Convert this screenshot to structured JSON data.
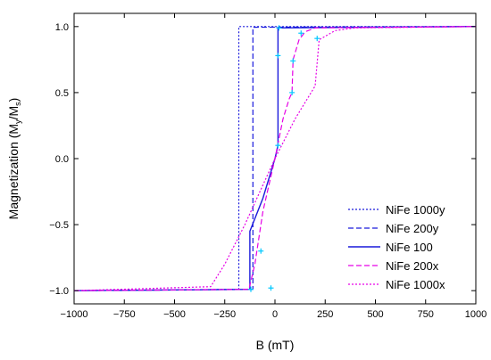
{
  "chart_data": {
    "type": "line",
    "xlabel": "B (mT)",
    "ylabel_main": "Magnetization (M",
    "ylabel_sub1": "y",
    "ylabel_mid": "/M",
    "ylabel_sub2": "s",
    "ylabel_end": ")",
    "xlim": [
      -1000,
      1000
    ],
    "ylim": [
      -1.1,
      1.1
    ],
    "xticks": [
      -1000,
      -750,
      -500,
      -250,
      0,
      250,
      500,
      750,
      1000
    ],
    "xtick_labels": [
      "−1000",
      "−750",
      "−500",
      "−250",
      "0",
      "250",
      "500",
      "750",
      "1000"
    ],
    "yticks": [
      -1.0,
      -0.5,
      0.0,
      0.5,
      1.0
    ],
    "ytick_labels": [
      "−1.0",
      "−0.5",
      "0.0",
      "0.5",
      "1.0"
    ],
    "legend_position": "bottom-right",
    "colors": {
      "blue": "#1a1adc",
      "magenta": "#e600e6",
      "marker": "#00c8ff"
    },
    "series": [
      {
        "name": "NiFe 1000y",
        "style": "dotted",
        "color": "#1a1adc",
        "points": [
          [
            -1000,
            -1.0
          ],
          [
            -180,
            -0.99
          ],
          [
            -180,
            1.0
          ],
          [
            1000,
            1.0
          ]
        ]
      },
      {
        "name": "NiFe 200y",
        "style": "dashed",
        "color": "#1a1adc",
        "points": [
          [
            -1000,
            -1.0
          ],
          [
            -110,
            -0.99
          ],
          [
            -110,
            0.995
          ],
          [
            1000,
            1.0
          ]
        ]
      },
      {
        "name": "NiFe 100",
        "style": "solid",
        "color": "#1a1adc",
        "points": [
          [
            -1000,
            -1.0
          ],
          [
            -125,
            -0.99
          ],
          [
            -125,
            -0.55
          ],
          [
            -60,
            -0.3
          ],
          [
            0,
            0.0
          ],
          [
            15,
            0.1
          ],
          [
            15,
            0.99
          ],
          [
            1000,
            1.0
          ]
        ]
      },
      {
        "name": "NiFe 200x",
        "style": "dashed",
        "color": "#e600e6",
        "points": [
          [
            -1000,
            -1.0
          ],
          [
            -130,
            -0.99
          ],
          [
            -100,
            -0.8
          ],
          [
            -60,
            -0.4
          ],
          [
            0,
            0.0
          ],
          [
            40,
            0.3
          ],
          [
            70,
            0.45
          ],
          [
            85,
            0.5
          ],
          [
            90,
            0.75
          ],
          [
            120,
            0.9
          ],
          [
            150,
            0.96
          ],
          [
            200,
            0.99
          ],
          [
            1000,
            1.0
          ]
        ]
      },
      {
        "name": "NiFe 1000x",
        "style": "dotted",
        "color": "#e600e6",
        "points": [
          [
            -1000,
            -1.0
          ],
          [
            -320,
            -0.97
          ],
          [
            -250,
            -0.8
          ],
          [
            -150,
            -0.5
          ],
          [
            0,
            0.0
          ],
          [
            100,
            0.3
          ],
          [
            200,
            0.55
          ],
          [
            220,
            0.9
          ],
          [
            300,
            0.97
          ],
          [
            400,
            0.99
          ],
          [
            1000,
            1.0
          ]
        ]
      }
    ],
    "markers": [
      [
        -120,
        -0.99
      ],
      [
        -70,
        -0.7
      ],
      [
        15,
        0.1
      ],
      [
        15,
        0.78
      ],
      [
        85,
        0.5
      ],
      [
        90,
        0.74
      ],
      [
        130,
        0.95
      ],
      [
        210,
        0.91
      ],
      [
        20,
        0.99
      ],
      [
        -20,
        -0.98
      ]
    ]
  }
}
